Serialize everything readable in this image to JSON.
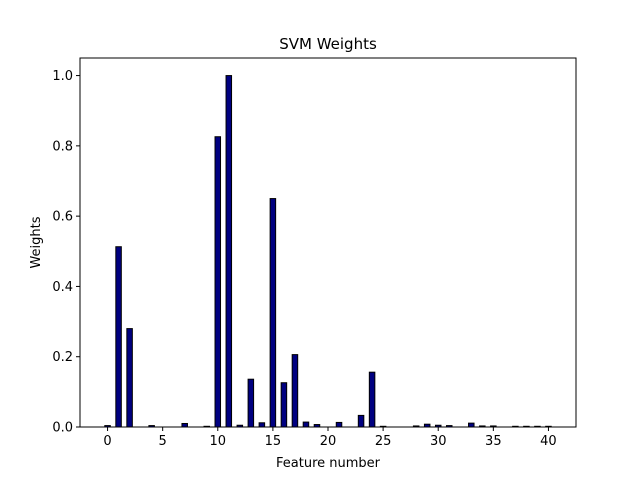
{
  "chart_data": {
    "type": "bar",
    "title": "SVM Weights",
    "xlabel": "Feature number",
    "ylabel": "Weights",
    "xlim": [
      -2.5,
      42.5
    ],
    "ylim": [
      0,
      1.05
    ],
    "xticks": [
      0,
      5,
      10,
      15,
      20,
      25,
      30,
      35,
      40
    ],
    "yticks": [
      0.0,
      0.2,
      0.4,
      0.6,
      0.8,
      1.0
    ],
    "ytick_labels": [
      "0.0",
      "0.2",
      "0.4",
      "0.6",
      "0.8",
      "1.0"
    ],
    "grid": false,
    "legend": "none",
    "bar_color": "#000080",
    "edge_color": "#000000",
    "x": [
      0,
      1,
      2,
      3,
      4,
      5,
      6,
      7,
      8,
      9,
      10,
      11,
      12,
      13,
      14,
      15,
      16,
      17,
      18,
      19,
      20,
      21,
      22,
      23,
      24,
      25,
      26,
      27,
      28,
      29,
      30,
      31,
      32,
      33,
      34,
      35,
      36,
      37,
      38,
      39,
      40
    ],
    "values": [
      0.004,
      0.513,
      0.28,
      0.0,
      0.004,
      0.0,
      0.0,
      0.01,
      0.0,
      0.002,
      0.826,
      1.0,
      0.005,
      0.136,
      0.012,
      0.65,
      0.126,
      0.206,
      0.014,
      0.007,
      0.0,
      0.013,
      0.0,
      0.033,
      0.156,
      0.002,
      0.0,
      0.0,
      0.003,
      0.008,
      0.005,
      0.004,
      0.0,
      0.011,
      0.003,
      0.003,
      0.0,
      0.002,
      0.002,
      0.002,
      0.002
    ]
  }
}
